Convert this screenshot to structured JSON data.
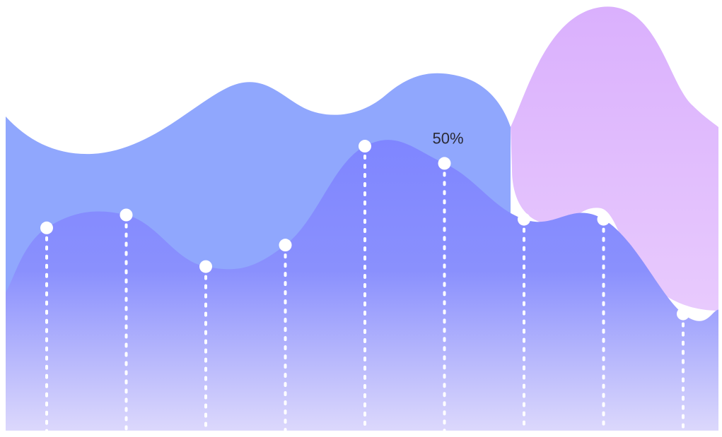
{
  "chart_data": {
    "type": "area",
    "categories": [
      "",
      "",
      "",
      "",
      "",
      "",
      "",
      "",
      ""
    ],
    "series": [
      {
        "values": [
          47,
          50,
          38,
          43,
          66,
          62,
          49,
          49,
          27
        ],
        "color": "#7f86ff"
      }
    ],
    "background_shapes": {
      "wave_color": "#90a7fd",
      "peak_color": "#dcb2fc"
    },
    "annotations": [
      {
        "index": 5,
        "text": "50%"
      }
    ],
    "ylim": [
      0,
      100
    ],
    "grid": false,
    "legend": "none",
    "marker_color": "#ffffff"
  }
}
